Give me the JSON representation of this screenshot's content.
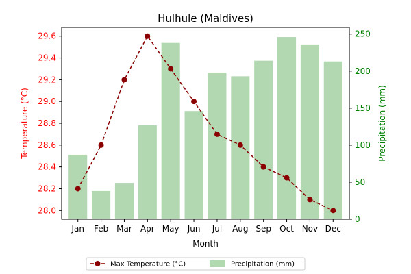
{
  "chart_data": {
    "type": "bar",
    "title": "Hulhule (Maldives)",
    "xlabel": "Month",
    "ylabel_left": "Temperature (°C)",
    "ylabel_right": "Precipitation (mm)",
    "categories": [
      "Jan",
      "Feb",
      "Mar",
      "Apr",
      "May",
      "Jun",
      "Jul",
      "Aug",
      "Sep",
      "Oct",
      "Nov",
      "Dec"
    ],
    "y_left_lim": [
      27.92,
      29.68
    ],
    "y_left_ticks": [
      28.0,
      28.2,
      28.4,
      28.6,
      28.8,
      29.0,
      29.2,
      29.4,
      29.6
    ],
    "y_right_lim": [
      0,
      259
    ],
    "y_right_ticks": [
      0,
      50,
      100,
      150,
      200,
      250
    ],
    "series": [
      {
        "name": "Max Temperature (°C)",
        "kind": "line",
        "axis": "left",
        "line_style": "dashed",
        "marker": "circle",
        "color": "#8b0000",
        "values": [
          28.2,
          28.6,
          29.2,
          29.6,
          29.3,
          29.0,
          28.7,
          28.6,
          28.4,
          28.3,
          28.1,
          28.0
        ]
      },
      {
        "name": "Precipitation (mm)",
        "kind": "bar",
        "axis": "right",
        "color": "#b2d8b2",
        "values": [
          87,
          38,
          49,
          127,
          238,
          146,
          198,
          193,
          214,
          246,
          236,
          213
        ]
      }
    ],
    "left_axis_color": "#ff0000",
    "right_axis_color": "#008000",
    "legend": {
      "placement": "bottom-center",
      "entries": [
        "Max Temperature (°C)",
        "Precipitation (mm)"
      ]
    },
    "grid": false
  }
}
